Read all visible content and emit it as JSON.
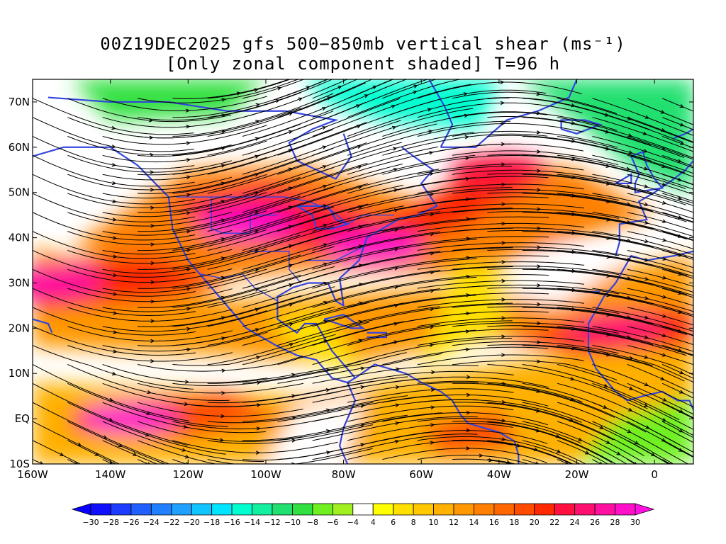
{
  "title": {
    "line1": "00Z19DEC2025 gfs 500−850mb vertical shear (ms⁻¹)",
    "line2": "[Only zonal component shaded] T=96 h"
  },
  "map": {
    "lon_range": [
      -160,
      10
    ],
    "lat_range": [
      -10,
      75
    ],
    "lon_ticks": [
      {
        "value": -160,
        "label": "160W"
      },
      {
        "value": -140,
        "label": "140W"
      },
      {
        "value": -120,
        "label": "120W"
      },
      {
        "value": -100,
        "label": "100W"
      },
      {
        "value": -80,
        "label": "80W"
      },
      {
        "value": -60,
        "label": "60W"
      },
      {
        "value": -40,
        "label": "40W"
      },
      {
        "value": -20,
        "label": "20W"
      },
      {
        "value": 0,
        "label": "0"
      }
    ],
    "lat_ticks": [
      {
        "value": -10,
        "label": "10S"
      },
      {
        "value": 0,
        "label": "EQ"
      },
      {
        "value": 10,
        "label": "10N"
      },
      {
        "value": 20,
        "label": "20N"
      },
      {
        "value": 30,
        "label": "30N"
      },
      {
        "value": 40,
        "label": "40N"
      },
      {
        "value": 50,
        "label": "50N"
      },
      {
        "value": 60,
        "label": "60N"
      },
      {
        "value": 70,
        "label": "70N"
      }
    ],
    "coastline_color": "#3344dd",
    "streamline_color": "#000000",
    "shear_maxima": [
      {
        "lon": -135,
        "lat": 0,
        "u": 30
      },
      {
        "lon": -105,
        "lat": 43,
        "u": 28
      },
      {
        "lon": -72,
        "lat": 38,
        "u": 28
      },
      {
        "lon": -155,
        "lat": 30,
        "u": 26
      },
      {
        "lon": -10,
        "lat": 20,
        "u": 24
      },
      {
        "lon": -40,
        "lat": 55,
        "u": 20
      }
    ]
  },
  "colorbar": {
    "levels": [
      -30,
      -28,
      -26,
      -24,
      -22,
      -20,
      -18,
      -16,
      -14,
      -12,
      -10,
      -8,
      -6,
      -4,
      4,
      6,
      8,
      10,
      12,
      14,
      16,
      18,
      20,
      22,
      24,
      26,
      28,
      30
    ],
    "labels": [
      "−30",
      "−28",
      "−26",
      "−24",
      "−22",
      "−20",
      "−18",
      "−16",
      "−14",
      "−12",
      "−10",
      "−8",
      "−6",
      "−4",
      "4",
      "6",
      "8",
      "10",
      "12",
      "14",
      "16",
      "18",
      "20",
      "22",
      "24",
      "26",
      "28",
      "30"
    ],
    "colors": [
      "#1010ff",
      "#1c3cff",
      "#2060ff",
      "#2080ff",
      "#20a0ff",
      "#10c4ff",
      "#00e4ff",
      "#00ffd0",
      "#10f0a0",
      "#20e070",
      "#30e040",
      "#70f020",
      "#a0f020",
      "#ffffff",
      "#ffff00",
      "#ffe000",
      "#ffc800",
      "#ffb000",
      "#ff9800",
      "#ff8000",
      "#ff6800",
      "#ff4c00",
      "#ff2800",
      "#ff1040",
      "#ff1070",
      "#ff10a0",
      "#ff10c8"
    ],
    "under_color": "#0a00ff",
    "over_color": "#ff10e0"
  }
}
